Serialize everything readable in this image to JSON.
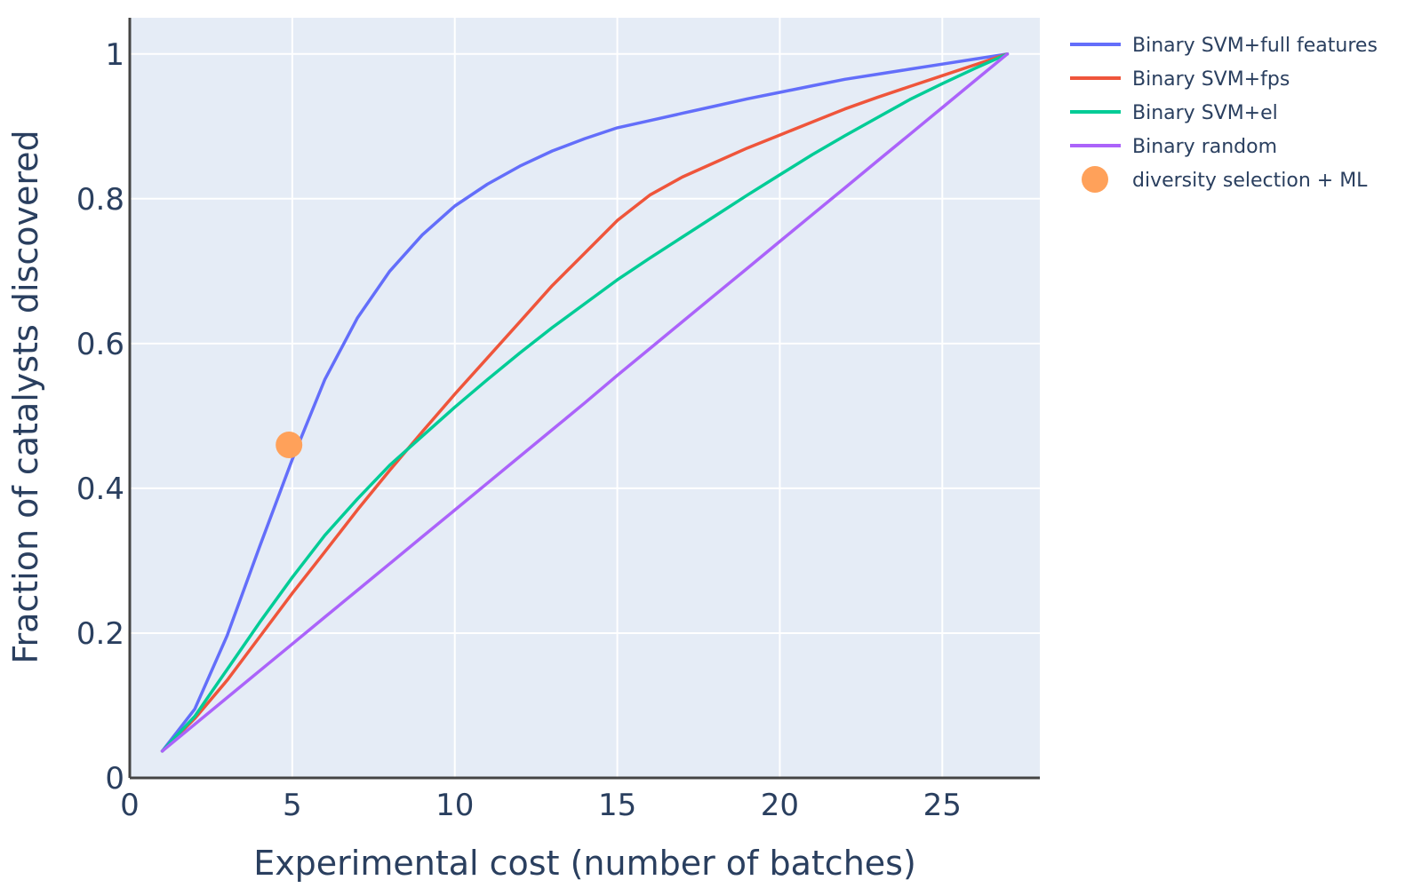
{
  "chart_data": {
    "type": "line",
    "title": "",
    "xlabel": "Experimental cost (number of batches)",
    "ylabel": "Fraction of catalysts discovered",
    "xlim": [
      0,
      28
    ],
    "ylim": [
      0,
      1.05
    ],
    "x_ticks": [
      0,
      5,
      10,
      15,
      20,
      25
    ],
    "y_ticks": [
      0,
      0.2,
      0.4,
      0.6,
      0.8,
      1
    ],
    "y_tick_labels": [
      "0",
      "0.2",
      "0.4",
      "0.6",
      "0.8",
      "1"
    ],
    "grid": true,
    "legend_position": "right",
    "background_color": "#e5ecf6",
    "series": [
      {
        "name": "Binary SVM+full features",
        "mode": "lines",
        "color": "#636efa",
        "x": [
          1,
          2,
          3,
          4,
          5,
          6,
          7,
          8,
          9,
          10,
          11,
          12,
          13,
          14,
          15,
          16,
          17,
          18,
          19,
          20,
          21,
          22,
          23,
          24,
          25,
          26,
          27
        ],
        "y": [
          0.037,
          0.095,
          0.197,
          0.32,
          0.44,
          0.55,
          0.635,
          0.7,
          0.75,
          0.79,
          0.82,
          0.845,
          0.866,
          0.883,
          0.898,
          0.908,
          0.918,
          0.928,
          0.938,
          0.947,
          0.956,
          0.965,
          0.972,
          0.979,
          0.986,
          0.993,
          1.0
        ]
      },
      {
        "name": "Binary SVM+fps",
        "mode": "lines",
        "color": "#ef553b",
        "x": [
          1,
          2,
          3,
          4,
          5,
          6,
          7,
          8,
          9,
          10,
          11,
          12,
          13,
          14,
          15,
          16,
          17,
          18,
          19,
          20,
          21,
          22,
          23,
          24,
          25,
          26,
          27
        ],
        "y": [
          0.037,
          0.082,
          0.135,
          0.195,
          0.255,
          0.312,
          0.37,
          0.425,
          0.478,
          0.53,
          0.58,
          0.63,
          0.68,
          0.725,
          0.77,
          0.805,
          0.83,
          0.85,
          0.87,
          0.888,
          0.906,
          0.924,
          0.94,
          0.955,
          0.97,
          0.985,
          1.0
        ]
      },
      {
        "name": "Binary SVM+el",
        "mode": "lines",
        "color": "#00cc96",
        "x": [
          1,
          2,
          3,
          4,
          5,
          6,
          7,
          8,
          9,
          10,
          11,
          12,
          13,
          14,
          15,
          16,
          17,
          18,
          19,
          20,
          21,
          22,
          23,
          24,
          25,
          26,
          27
        ],
        "y": [
          0.037,
          0.085,
          0.15,
          0.215,
          0.277,
          0.335,
          0.385,
          0.432,
          0.472,
          0.512,
          0.55,
          0.587,
          0.622,
          0.655,
          0.688,
          0.718,
          0.747,
          0.776,
          0.805,
          0.833,
          0.861,
          0.887,
          0.912,
          0.937,
          0.959,
          0.98,
          1.0
        ]
      },
      {
        "name": "Binary random",
        "mode": "lines",
        "color": "#ab63fa",
        "x": [
          1,
          2,
          3,
          4,
          5,
          6,
          7,
          8,
          9,
          10,
          11,
          12,
          13,
          14,
          15,
          16,
          17,
          18,
          19,
          20,
          21,
          22,
          23,
          24,
          25,
          26,
          27
        ],
        "y": [
          0.037,
          0.074,
          0.111,
          0.148,
          0.185,
          0.222,
          0.259,
          0.296,
          0.333,
          0.37,
          0.407,
          0.444,
          0.481,
          0.518,
          0.556,
          0.593,
          0.63,
          0.667,
          0.704,
          0.741,
          0.778,
          0.815,
          0.852,
          0.889,
          0.926,
          0.963,
          1.0
        ]
      },
      {
        "name": "diversity selection + ML",
        "mode": "markers",
        "color": "#ffa15a",
        "x": [
          4.9
        ],
        "y": [
          0.46
        ]
      }
    ]
  }
}
